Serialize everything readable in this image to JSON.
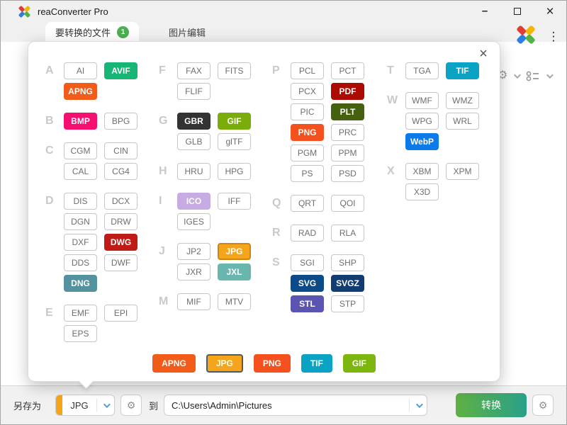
{
  "window": {
    "title": "reaConverter Pro"
  },
  "icons": {
    "minimize": "–",
    "close": "×",
    "dialog_close": "×",
    "menu": "⋮",
    "gear": "⚙"
  },
  "tabs": [
    {
      "label": "要转换的文件",
      "badge": "1"
    },
    {
      "label": "图片编辑"
    }
  ],
  "dialog": {
    "columns": [
      {
        "sections": [
          {
            "letter": "A",
            "rows": [
              [
                {
                  "label": "AI"
                },
                {
                  "label": "AVIF",
                  "bg": "#17b576"
                }
              ],
              [
                {
                  "label": "APNG",
                  "bg": "#f25c1a"
                }
              ]
            ]
          },
          {
            "letter": "B",
            "rows": [
              [
                {
                  "label": "BMP",
                  "bg": "#f50f70"
                },
                {
                  "label": "BPG"
                }
              ]
            ]
          },
          {
            "letter": "C",
            "rows": [
              [
                {
                  "label": "CGM"
                },
                {
                  "label": "CIN"
                }
              ],
              [
                {
                  "label": "CAL"
                },
                {
                  "label": "CG4"
                }
              ]
            ]
          },
          {
            "letter": "D",
            "rows": [
              [
                {
                  "label": "DIS"
                },
                {
                  "label": "DCX"
                }
              ],
              [
                {
                  "label": "DGN"
                },
                {
                  "label": "DRW"
                }
              ],
              [
                {
                  "label": "DXF"
                },
                {
                  "label": "DWG",
                  "bg": "#c11b17"
                }
              ],
              [
                {
                  "label": "DDS"
                },
                {
                  "label": "DWF"
                }
              ],
              [
                {
                  "label": "DNG",
                  "bg": "#55929f"
                }
              ]
            ]
          },
          {
            "letter": "E",
            "rows": [
              [
                {
                  "label": "EMF"
                },
                {
                  "label": "EPI"
                }
              ],
              [
                {
                  "label": "EPS"
                }
              ]
            ]
          }
        ]
      },
      {
        "sections": [
          {
            "letter": "F",
            "rows": [
              [
                {
                  "label": "FAX"
                },
                {
                  "label": "FITS"
                }
              ],
              [
                {
                  "label": "FLIF"
                }
              ]
            ]
          },
          {
            "letter": "G",
            "rows": [
              [
                {
                  "label": "GBR",
                  "bg": "#333333"
                },
                {
                  "label": "GIF",
                  "bg": "#7aad0b"
                }
              ],
              [
                {
                  "label": "GLB"
                },
                {
                  "label": "glTF"
                }
              ]
            ]
          },
          {
            "letter": "H",
            "rows": [
              [
                {
                  "label": "HRU"
                },
                {
                  "label": "HPG"
                }
              ]
            ]
          },
          {
            "letter": "I",
            "rows": [
              [
                {
                  "label": "ICO",
                  "bg": "#c6ace2"
                },
                {
                  "label": "IFF"
                }
              ],
              [
                {
                  "label": "IGES"
                }
              ]
            ]
          },
          {
            "letter": "J",
            "rows": [
              [
                {
                  "label": "JP2"
                },
                {
                  "label": "JPG",
                  "bg": "#f5a51b",
                  "border": "#cf850e",
                  "selected": true
                }
              ],
              [
                {
                  "label": "JXR"
                },
                {
                  "label": "JXL",
                  "bg": "#69b6af"
                }
              ]
            ]
          },
          {
            "letter": "M",
            "rows": [
              [
                {
                  "label": "MIF"
                },
                {
                  "label": "MTV"
                }
              ]
            ]
          }
        ]
      },
      {
        "sections": [
          {
            "letter": "P",
            "rows": [
              [
                {
                  "label": "PCL"
                },
                {
                  "label": "PCT"
                }
              ],
              [
                {
                  "label": "PCX"
                },
                {
                  "label": "PDF",
                  "bg": "#ac0b01"
                }
              ],
              [
                {
                  "label": "PIC"
                },
                {
                  "label": "PLT",
                  "bg": "#45600e"
                }
              ],
              [
                {
                  "label": "PNG",
                  "bg": "#f4511e"
                },
                {
                  "label": "PRC"
                }
              ],
              [
                {
                  "label": "PGM"
                },
                {
                  "label": "PPM"
                }
              ],
              [
                {
                  "label": "PS"
                },
                {
                  "label": "PSD"
                }
              ]
            ]
          },
          {
            "letter": "Q",
            "rows": [
              [
                {
                  "label": "QRT"
                },
                {
                  "label": "QOI"
                }
              ]
            ]
          },
          {
            "letter": "R",
            "rows": [
              [
                {
                  "label": "RAD"
                },
                {
                  "label": "RLA"
                }
              ]
            ]
          },
          {
            "letter": "S",
            "rows": [
              [
                {
                  "label": "SGI"
                },
                {
                  "label": "SHP"
                }
              ],
              [
                {
                  "label": "SVG",
                  "bg": "#0d4a88"
                },
                {
                  "label": "SVGZ",
                  "bg": "#113d72"
                }
              ],
              [
                {
                  "label": "STL",
                  "bg": "#5955b1"
                },
                {
                  "label": "STP"
                }
              ]
            ]
          }
        ]
      },
      {
        "sections": [
          {
            "letter": "T",
            "rows": [
              [
                {
                  "label": "TGA"
                },
                {
                  "label": "TIF",
                  "bg": "#0ba3c4"
                }
              ]
            ]
          },
          {
            "letter": "W",
            "rows": [
              [
                {
                  "label": "WMF"
                },
                {
                  "label": "WMZ"
                }
              ],
              [
                {
                  "label": "WPG"
                },
                {
                  "label": "WRL"
                }
              ],
              [
                {
                  "label": "WebP",
                  "bg": "#0e79e9"
                }
              ]
            ]
          },
          {
            "letter": "X",
            "rows": [
              [
                {
                  "label": "XBM"
                },
                {
                  "label": "XPM"
                }
              ],
              [
                {
                  "label": "X3D"
                }
              ]
            ]
          }
        ]
      }
    ],
    "quick": [
      {
        "label": "APNG",
        "bg": "#f25c1a"
      },
      {
        "label": "JPG",
        "bg": "#f5a51b",
        "selected": true
      },
      {
        "label": "PNG",
        "bg": "#f4511e"
      },
      {
        "label": "TIF",
        "bg": "#0ba3c4"
      },
      {
        "label": "GIF",
        "bg": "#7cb60f"
      }
    ]
  },
  "bottom_bar": {
    "save_as_label": "另存为",
    "format_value": "JPG",
    "to_label": "到",
    "path": "C:\\Users\\Admin\\Pictures",
    "convert_label": "转换"
  },
  "colors": {
    "accent_green": "#4caf50",
    "selected_amber": "#f5a51b",
    "convert_gradient": [
      "#5fb143",
      "#29a089"
    ]
  }
}
